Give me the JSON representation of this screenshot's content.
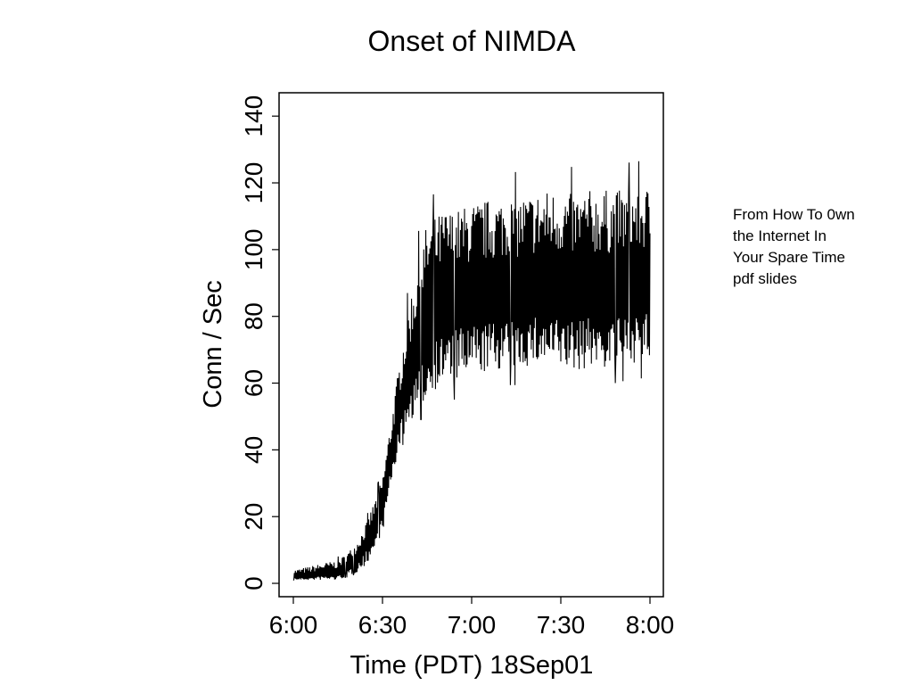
{
  "slide": {
    "note_lines": [
      "From How To 0wn",
      "the Internet In",
      "Your Spare Time",
      "pdf slides"
    ]
  },
  "chart_data": {
    "type": "line",
    "title": "Onset of NIMDA",
    "xlabel": "Time (PDT) 18Sep01",
    "ylabel": "Conn / Sec",
    "x_ticks": [
      "6:00",
      "6:30",
      "7:00",
      "7:30",
      "8:00"
    ],
    "y_ticks": [
      "0",
      "20",
      "40",
      "60",
      "80",
      "100",
      "120",
      "140"
    ],
    "xlim": [
      "6:00",
      "8:00"
    ],
    "ylim": [
      -4,
      147
    ],
    "grid": false,
    "legend": "none",
    "line_color": "#000000",
    "series": [
      {
        "x": [
          "6:00",
          "6:05",
          "6:10",
          "6:15",
          "6:18",
          "6:21",
          "6:24",
          "6:27",
          "6:30",
          "6:33",
          "6:36",
          "6:39",
          "6:42",
          "6:45",
          "6:48",
          "6:51",
          "6:55",
          "7:00",
          "7:05",
          "7:10",
          "7:15",
          "7:20",
          "7:25",
          "7:30",
          "7:35",
          "7:40",
          "7:45",
          "7:50",
          "7:55",
          "8:00"
        ],
        "y": [
          2,
          2,
          3,
          3,
          5,
          7,
          11,
          16,
          23,
          38,
          52,
          62,
          70,
          78,
          82,
          84,
          85,
          86,
          86,
          87,
          87,
          88,
          88,
          88,
          87,
          88,
          88,
          88,
          89,
          89
        ],
        "low": [
          1,
          1,
          1,
          1,
          2,
          3,
          5,
          9,
          15,
          30,
          42,
          48,
          52,
          55,
          58,
          60,
          60,
          62,
          63,
          64,
          64,
          65,
          65,
          64,
          63,
          65,
          64,
          65,
          66,
          66
        ],
        "high": [
          4,
          5,
          6,
          7,
          9,
          12,
          17,
          24,
          32,
          50,
          68,
          85,
          98,
          108,
          110,
          112,
          112,
          114,
          115,
          116,
          116,
          117,
          118,
          118,
          117,
          118,
          118,
          118,
          119,
          119
        ]
      }
    ]
  }
}
